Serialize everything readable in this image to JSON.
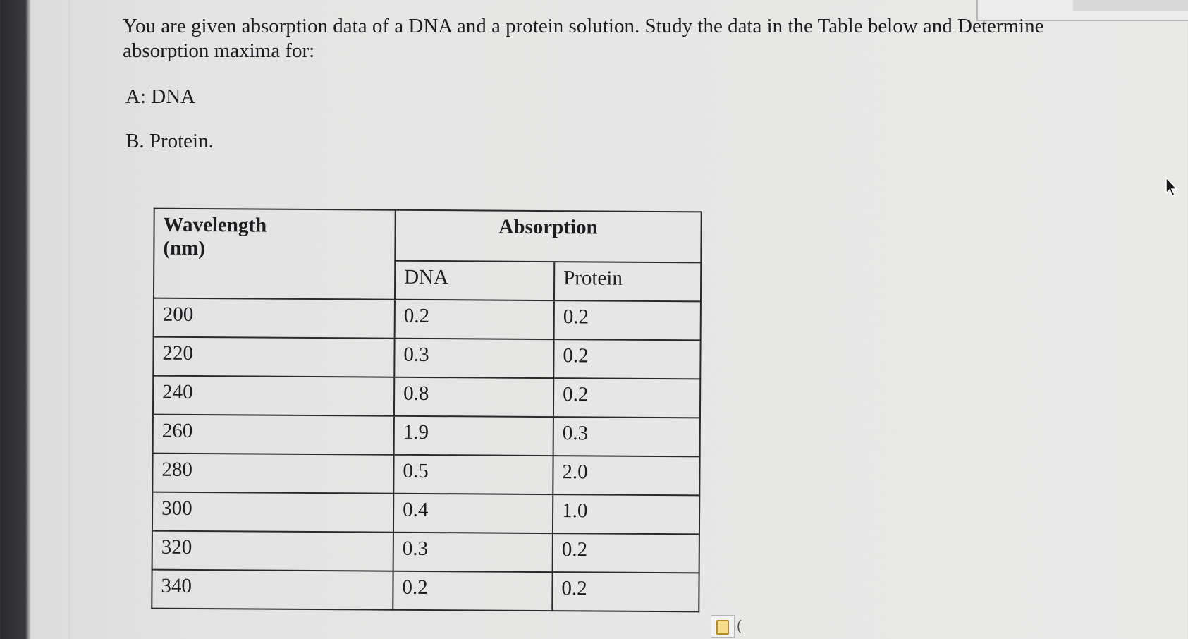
{
  "question": "You are given absorption data of a DNA and a protein solution.  Study the data in the Table below and Determine absorption maxima for:",
  "options": {
    "a": "A:  DNA",
    "b": "B. Protein."
  },
  "table": {
    "header_wavelength_line1": "Wavelength",
    "header_wavelength_line2": "(nm)",
    "header_absorption": "Absorption",
    "sub_dna": "DNA",
    "sub_protein": "Protein",
    "rows": [
      {
        "wavelength": "200",
        "dna": "0.2",
        "protein": "0.2"
      },
      {
        "wavelength": "220",
        "dna": "0.3",
        "protein": "0.2"
      },
      {
        "wavelength": "240",
        "dna": "0.8",
        "protein": "0.2"
      },
      {
        "wavelength": "260",
        "dna": "1.9",
        "protein": "0.3"
      },
      {
        "wavelength": "280",
        "dna": "0.5",
        "protein": "2.0"
      },
      {
        "wavelength": "300",
        "dna": "0.4",
        "protein": "1.0"
      },
      {
        "wavelength": "320",
        "dna": "0.3",
        "protein": "0.2"
      },
      {
        "wavelength": "340",
        "dna": "0.2",
        "protein": "0.2"
      }
    ]
  },
  "clipboard_text": "(",
  "icons": [
    "mouse-cursor-icon",
    "clipboard-paste-icon"
  ]
}
